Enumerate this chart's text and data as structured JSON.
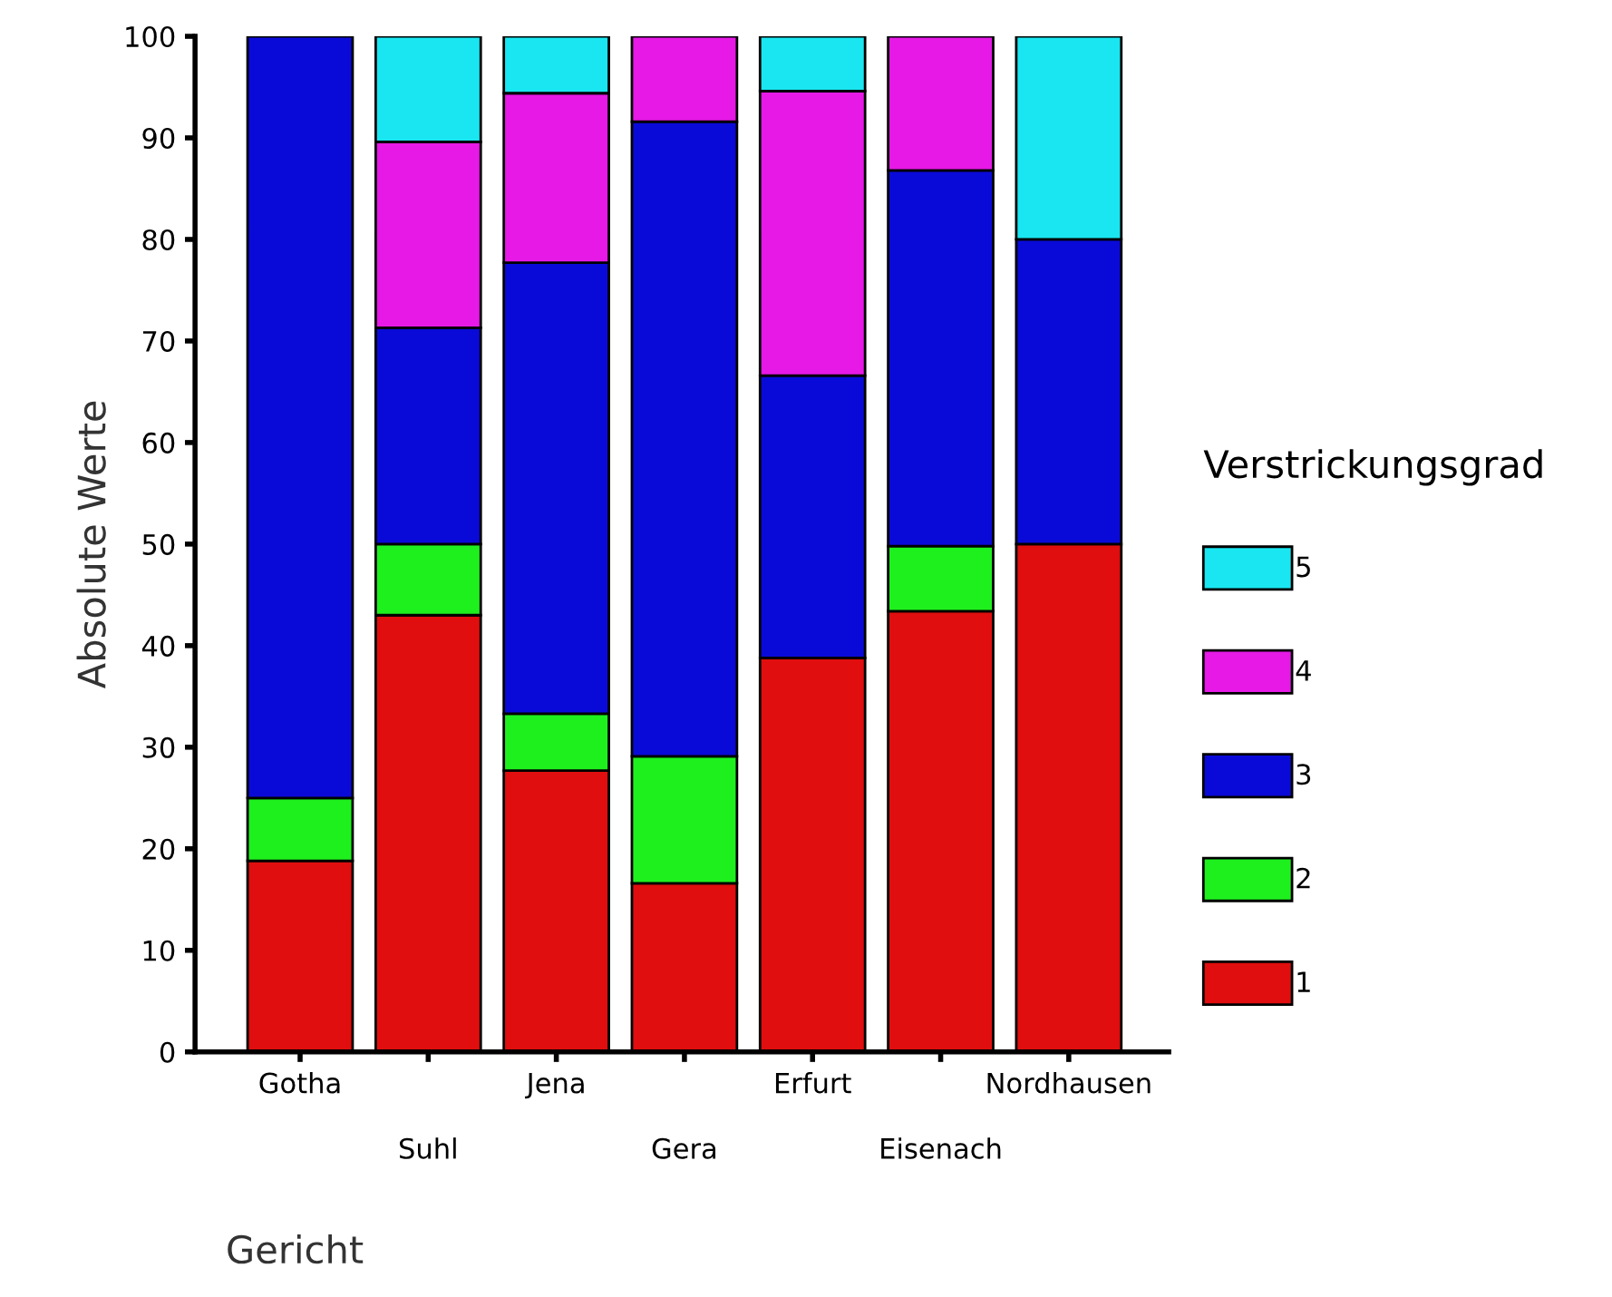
{
  "chart_data": {
    "type": "bar",
    "stacked": true,
    "xlabel": "Gericht",
    "ylabel": "Absolute Werte",
    "legend_title": "Verstrickungsgrad",
    "legend": "right",
    "categories": [
      "Gotha",
      "Suhl",
      "Jena",
      "Gera",
      "Erfurt",
      "Eisenach",
      "Nordhausen"
    ],
    "series": [
      {
        "name": "1",
        "color": "#e00e0e",
        "values": [
          18.8,
          43,
          27.7,
          16.6,
          38.8,
          43.4,
          50
        ]
      },
      {
        "name": "2",
        "color": "#1ef01e",
        "values": [
          6.2,
          7,
          5.6,
          12.5,
          null,
          6.4,
          null
        ]
      },
      {
        "name": "3",
        "color": "#0a0ad8",
        "values": [
          75,
          21.3,
          44.4,
          62.5,
          27.8,
          37,
          30
        ]
      },
      {
        "name": "4",
        "color": "#e619e6",
        "values": [
          null,
          18.3,
          16.7,
          8.4,
          28,
          13.2,
          null
        ]
      },
      {
        "name": "5",
        "color": "#19e6f0",
        "values": [
          null,
          10.4,
          5.6,
          null,
          5.4,
          null,
          20
        ]
      }
    ],
    "ylim": [
      0,
      100
    ],
    "yticks": [
      0,
      10,
      20,
      30,
      40,
      50,
      60,
      70,
      80,
      90,
      100
    ],
    "grid": false
  }
}
